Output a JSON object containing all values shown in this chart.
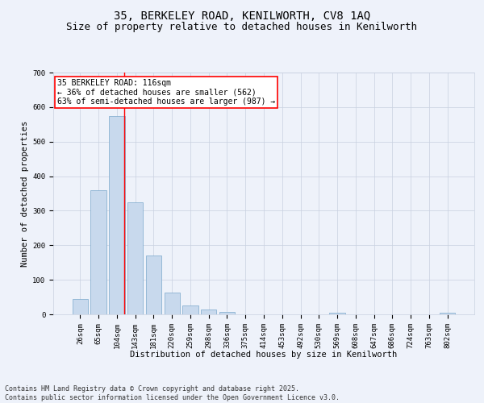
{
  "title": "35, BERKELEY ROAD, KENILWORTH, CV8 1AQ",
  "subtitle": "Size of property relative to detached houses in Kenilworth",
  "xlabel": "Distribution of detached houses by size in Kenilworth",
  "ylabel": "Number of detached properties",
  "categories": [
    "26sqm",
    "65sqm",
    "104sqm",
    "143sqm",
    "181sqm",
    "220sqm",
    "259sqm",
    "298sqm",
    "336sqm",
    "375sqm",
    "414sqm",
    "453sqm",
    "492sqm",
    "530sqm",
    "569sqm",
    "608sqm",
    "647sqm",
    "686sqm",
    "724sqm",
    "763sqm",
    "802sqm"
  ],
  "values": [
    45,
    360,
    575,
    325,
    170,
    62,
    25,
    13,
    7,
    0,
    0,
    0,
    0,
    0,
    5,
    0,
    0,
    0,
    0,
    0,
    5
  ],
  "bar_color": "#c8d9ed",
  "bar_edge_color": "#7aa8cc",
  "background_color": "#eef2fa",
  "grid_color": "#c8d0e0",
  "vline_x_index": 2.42,
  "vline_color": "red",
  "annotation_text": "35 BERKELEY ROAD: 116sqm\n← 36% of detached houses are smaller (562)\n63% of semi-detached houses are larger (987) →",
  "annotation_box_color": "white",
  "annotation_edge_color": "red",
  "ylim": [
    0,
    700
  ],
  "yticks": [
    0,
    100,
    200,
    300,
    400,
    500,
    600,
    700
  ],
  "footnote": "Contains HM Land Registry data © Crown copyright and database right 2025.\nContains public sector information licensed under the Open Government Licence v3.0.",
  "title_fontsize": 10,
  "subtitle_fontsize": 9,
  "axis_label_fontsize": 7.5,
  "tick_fontsize": 6.5,
  "annotation_fontsize": 7,
  "footnote_fontsize": 6
}
